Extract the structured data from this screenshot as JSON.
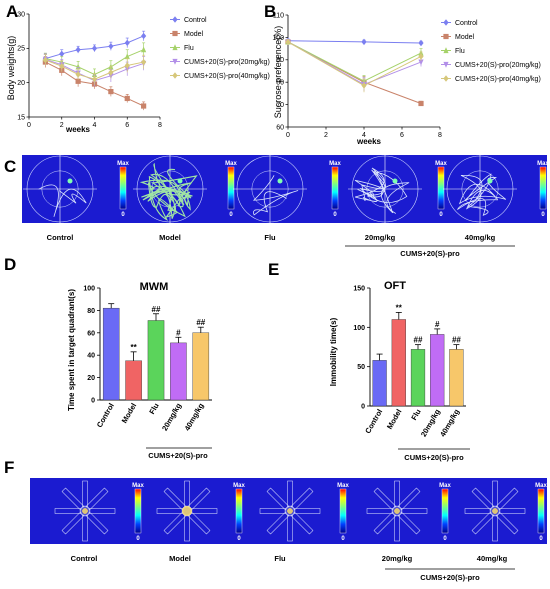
{
  "panels": {
    "A": "A",
    "B": "B",
    "C": "C",
    "D": "D",
    "E": "E",
    "F": "F"
  },
  "colors": {
    "control": "#7b7ff0",
    "model": "#c9836a",
    "flu": "#a6d26a",
    "low": "#b28fe8",
    "high": "#d6c77a",
    "bar_control": "#6a6af5",
    "bar_model": "#f06464",
    "bar_flu": "#5bd45b",
    "bar_low": "#c06cf5",
    "bar_high": "#f7c76a",
    "heatmap_bg": "#1b1bd0"
  },
  "legend": {
    "control": "Control",
    "model": "Model",
    "flu": "Flu",
    "low": "CUMS+20(S)-pro(20mg/kg)",
    "high": "CUMS+20(S)-pro(40mg/kg)"
  },
  "chart_data": [
    {
      "id": "A",
      "type": "line",
      "xlabel": "weeks",
      "ylabel": "Body weights(g)",
      "xlim": [
        0,
        8
      ],
      "ylim": [
        15,
        30
      ],
      "xticks": [
        "0",
        "2",
        "4",
        "6",
        "8"
      ],
      "yticks": [
        "15",
        "20",
        "25",
        "30"
      ],
      "x": [
        1,
        2,
        3,
        4,
        5,
        6,
        7
      ],
      "series": [
        {
          "name": "Control",
          "key": "control",
          "marker": "diamond",
          "values": [
            23.5,
            24.2,
            24.8,
            25.0,
            25.3,
            25.8,
            26.8
          ],
          "err": [
            0.6,
            0.6,
            0.5,
            0.5,
            0.6,
            0.7,
            0.7
          ]
        },
        {
          "name": "Model",
          "key": "model",
          "marker": "square",
          "values": [
            23.0,
            21.8,
            20.2,
            19.8,
            18.7,
            17.7,
            16.6
          ],
          "err": [
            0.8,
            0.8,
            0.8,
            0.7,
            0.7,
            0.6,
            0.6
          ]
        },
        {
          "name": "Flu",
          "key": "flu",
          "marker": "triangle-up",
          "values": [
            23.5,
            23.0,
            22.3,
            21.2,
            22.3,
            23.8,
            24.8
          ],
          "err": [
            0.8,
            0.8,
            0.8,
            0.8,
            0.9,
            1.0,
            1.0
          ]
        },
        {
          "name": "CUMS+20(S)-pro(20mg/kg)",
          "key": "low",
          "marker": "triangle-down",
          "values": [
            23.4,
            22.6,
            21.4,
            20.3,
            21.0,
            22.0,
            22.8
          ],
          "err": [
            0.8,
            0.8,
            0.8,
            0.8,
            0.9,
            1.0,
            1.0
          ]
        },
        {
          "name": "CUMS+20(S)-pro(40mg/kg)",
          "key": "high",
          "marker": "diamond",
          "values": [
            23.3,
            22.4,
            21.2,
            20.5,
            21.5,
            22.5,
            23.0
          ],
          "err": [
            0.8,
            0.8,
            0.8,
            0.8,
            0.9,
            1.0,
            1.0
          ]
        }
      ],
      "legend_position": "right"
    },
    {
      "id": "B",
      "type": "line",
      "xlabel": "weeks",
      "ylabel": "Sucrose preference(%)",
      "xlim": [
        0,
        8
      ],
      "ylim": [
        60,
        110
      ],
      "xticks": [
        "0",
        "2",
        "4",
        "6",
        "8"
      ],
      "yticks": [
        "60",
        "70",
        "80",
        "90",
        "100",
        "110"
      ],
      "x": [
        0,
        4,
        7
      ],
      "series": [
        {
          "name": "Control",
          "key": "control",
          "marker": "diamond",
          "values": [
            98.5,
            98.0,
            97.5
          ],
          "err": [
            0.8,
            0.8,
            0.8
          ]
        },
        {
          "name": "Model",
          "key": "model",
          "marker": "square",
          "values": [
            98.0,
            80.0,
            70.5
          ],
          "err": [
            1.0,
            2.5,
            1.0
          ]
        },
        {
          "name": "Flu",
          "key": "flu",
          "marker": "triangle-up",
          "values": [
            98.0,
            80.5,
            93.0
          ],
          "err": [
            1.0,
            2.5,
            2.0
          ]
        },
        {
          "name": "CUMS+20(S)-pro(20mg/kg)",
          "key": "low",
          "marker": "triangle-down",
          "values": [
            98.0,
            79.0,
            89.0
          ],
          "err": [
            1.0,
            3.0,
            2.0
          ]
        },
        {
          "name": "CUMS+20(S)-pro(40mg/kg)",
          "key": "high",
          "marker": "diamond",
          "values": [
            98.0,
            78.5,
            91.5
          ],
          "err": [
            1.0,
            3.0,
            2.0
          ]
        }
      ],
      "legend_position": "right"
    },
    {
      "id": "D",
      "type": "bar",
      "title": "MWM",
      "ylabel": "Time spent in target quadrant(s)",
      "ylim": [
        0,
        100
      ],
      "yticks": [
        "0",
        "20",
        "40",
        "60",
        "80",
        "100"
      ],
      "categories": [
        "Control",
        "Model",
        "Flu",
        "20mg/kg",
        "40mg/kg"
      ],
      "values": [
        82,
        35,
        71,
        51,
        60
      ],
      "err": [
        4,
        8,
        6,
        5,
        5
      ],
      "significance": [
        "",
        "**",
        "##",
        "#",
        "##"
      ],
      "keys": [
        "bar_control",
        "bar_model",
        "bar_flu",
        "bar_low",
        "bar_high"
      ],
      "group_label": "CUMS+20(S)-pro"
    },
    {
      "id": "E",
      "type": "bar",
      "title": "OFT",
      "ylabel": "Immobility time(s)",
      "ylim": [
        0,
        150
      ],
      "yticks": [
        "0",
        "50",
        "100",
        "150"
      ],
      "categories": [
        "Control",
        "Model",
        "Flu",
        "20mg/kg",
        "40mg/kg"
      ],
      "values": [
        58,
        110,
        72,
        91,
        72
      ],
      "err": [
        8,
        9,
        6,
        7,
        6
      ],
      "significance": [
        "",
        "**",
        "##",
        "#",
        "##"
      ],
      "keys": [
        "bar_control",
        "bar_model",
        "bar_flu",
        "bar_low",
        "bar_high"
      ],
      "group_label": "CUMS+20(S)-pro"
    }
  ],
  "panel_c": {
    "labels": [
      "Control",
      "Model",
      "Flu",
      "20mg/kg",
      "40mg/kg"
    ],
    "group_label": "CUMS+20(S)-pro",
    "colorbar_top": "Max",
    "colorbar_bottom": "0"
  },
  "panel_f": {
    "labels": [
      "Control",
      "Model",
      "Flu",
      "20mg/kg",
      "40mg/kg"
    ],
    "group_label": "CUMS+20(S)-pro",
    "colorbar_top": "Max",
    "colorbar_bottom": "0"
  }
}
